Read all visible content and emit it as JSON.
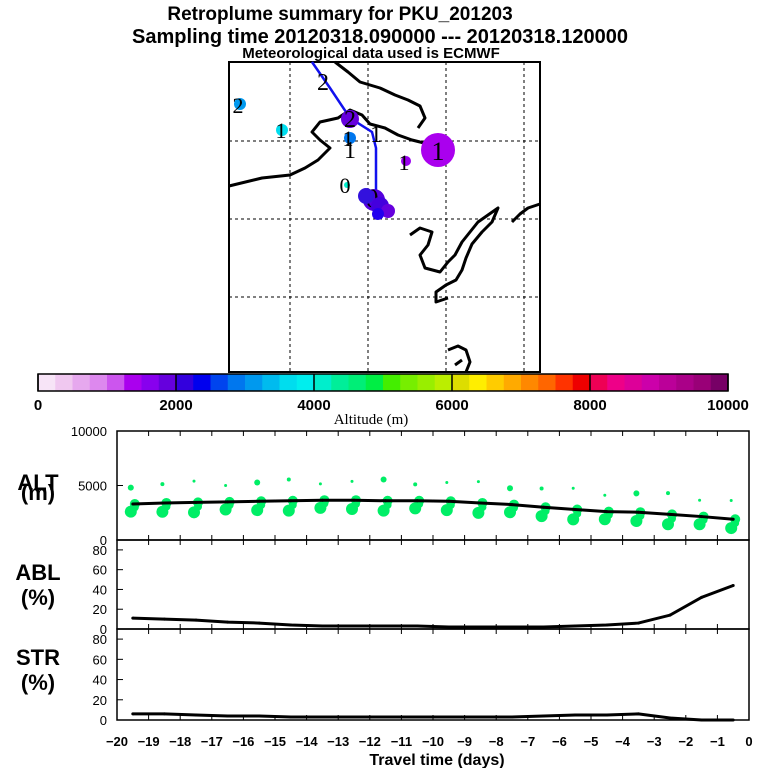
{
  "header": {
    "title": "Retroplume summary for PKU_201203",
    "sampling": "Sampling time   20120318.090000 --- 20120318.120000",
    "met": "Meteorological data used is ECMWF"
  },
  "colorbar": {
    "label": "Altitude (m)",
    "ticks": [
      "0",
      "2000",
      "4000",
      "6000",
      "8000",
      "10000"
    ],
    "colors": [
      "#f7e4f7",
      "#f0c8f0",
      "#e6a8ee",
      "#dd88ee",
      "#cc55ee",
      "#aa00ee",
      "#8800ee",
      "#6600dd",
      "#3300dd",
      "#0000ee",
      "#0044ee",
      "#0077ee",
      "#0099ee",
      "#00bbee",
      "#00ddee",
      "#00eeee",
      "#00eecc",
      "#00ee99",
      "#00ee77",
      "#00ee44",
      "#44ee00",
      "#77ee00",
      "#99ee00",
      "#bbee00",
      "#dddd00",
      "#ffee00",
      "#ffcc00",
      "#ffaa00",
      "#ff8800",
      "#ff6600",
      "#ff3300",
      "#ee0000",
      "#ee0055",
      "#ee0088",
      "#dd0099",
      "#cc00aa",
      "#bb0099",
      "#aa0088",
      "#990077",
      "#770066"
    ]
  },
  "map": {
    "markers": [
      {
        "label": "2",
        "color": "#0099ee"
      },
      {
        "label": "1",
        "color": "#00ddee"
      },
      {
        "label": "2",
        "color": "#6600dd"
      },
      {
        "label": "1",
        "color": "#0077ee"
      },
      {
        "label": "1",
        "color": "#aa00ee"
      },
      {
        "label": "1",
        "color": "#9900ee"
      },
      {
        "label": "0",
        "color": "#00eecc"
      },
      {
        "label": "0",
        "color": "#5500dd"
      }
    ],
    "path_labels": [
      "2",
      "1",
      "1"
    ]
  },
  "chart_data": [
    {
      "type": "line",
      "name": "ALT",
      "ylabel": "ALT\n(m)",
      "ylabel_lines": [
        "ALT",
        "(m)"
      ],
      "ylim": [
        0,
        10000
      ],
      "yticks": [
        "0",
        "5000",
        "10000"
      ],
      "x": [
        -19.5,
        -18.5,
        -17.5,
        -16.5,
        -15.5,
        -14.5,
        -13.5,
        -12.5,
        -11.5,
        -10.5,
        -9.5,
        -8.5,
        -7.5,
        -6.5,
        -5.5,
        -4.5,
        -3.5,
        -2.5,
        -1.5,
        -0.5
      ],
      "values": [
        3300,
        3400,
        3450,
        3500,
        3550,
        3600,
        3650,
        3650,
        3600,
        3600,
        3550,
        3400,
        3250,
        3000,
        2800,
        2600,
        2550,
        2350,
        2150,
        1900
      ],
      "scatter_color": "#00ee66"
    },
    {
      "type": "line",
      "name": "ABL",
      "ylabel": "ABL\n(%)",
      "ylabel_lines": [
        "ABL",
        "(%)"
      ],
      "ylim": [
        0,
        90
      ],
      "yticks": [
        "0",
        "20",
        "40",
        "60",
        "80"
      ],
      "x": [
        -19.5,
        -18.5,
        -17.5,
        -16.5,
        -15.5,
        -14.5,
        -13.5,
        -12.5,
        -11.5,
        -10.5,
        -9.5,
        -8.5,
        -7.5,
        -6.5,
        -5.5,
        -4.5,
        -3.5,
        -2.5,
        -1.5,
        -0.5
      ],
      "values": [
        11,
        10,
        9,
        7,
        6,
        4,
        3,
        3,
        3,
        3,
        2,
        2,
        2,
        2,
        3,
        4,
        6,
        14,
        32,
        44
      ]
    },
    {
      "type": "line",
      "name": "STR",
      "ylabel": "STR\n(%)",
      "ylabel_lines": [
        "STR",
        "(%)"
      ],
      "ylim": [
        0,
        90
      ],
      "yticks": [
        "0",
        "20",
        "40",
        "60",
        "80"
      ],
      "x": [
        -19.5,
        -18.5,
        -17.5,
        -16.5,
        -15.5,
        -14.5,
        -13.5,
        -12.5,
        -11.5,
        -10.5,
        -9.5,
        -8.5,
        -7.5,
        -6.5,
        -5.5,
        -4.5,
        -3.5,
        -2.5,
        -1.5,
        -0.5
      ],
      "values": [
        6,
        6,
        5,
        4,
        4,
        3,
        3,
        3,
        3,
        3,
        3,
        3,
        3,
        4,
        5,
        5,
        6,
        2,
        0,
        0
      ]
    }
  ],
  "xaxis": {
    "label": "Travel time (days)",
    "ticks": [
      "−20",
      "−19",
      "−18",
      "−17",
      "−16",
      "−15",
      "−14",
      "−13",
      "−12",
      "−11",
      "−10",
      "−9",
      "−8",
      "−7",
      "−6",
      "−5",
      "−4",
      "−3",
      "−2",
      "−1",
      "0"
    ],
    "xlim": [
      -20,
      0
    ]
  }
}
